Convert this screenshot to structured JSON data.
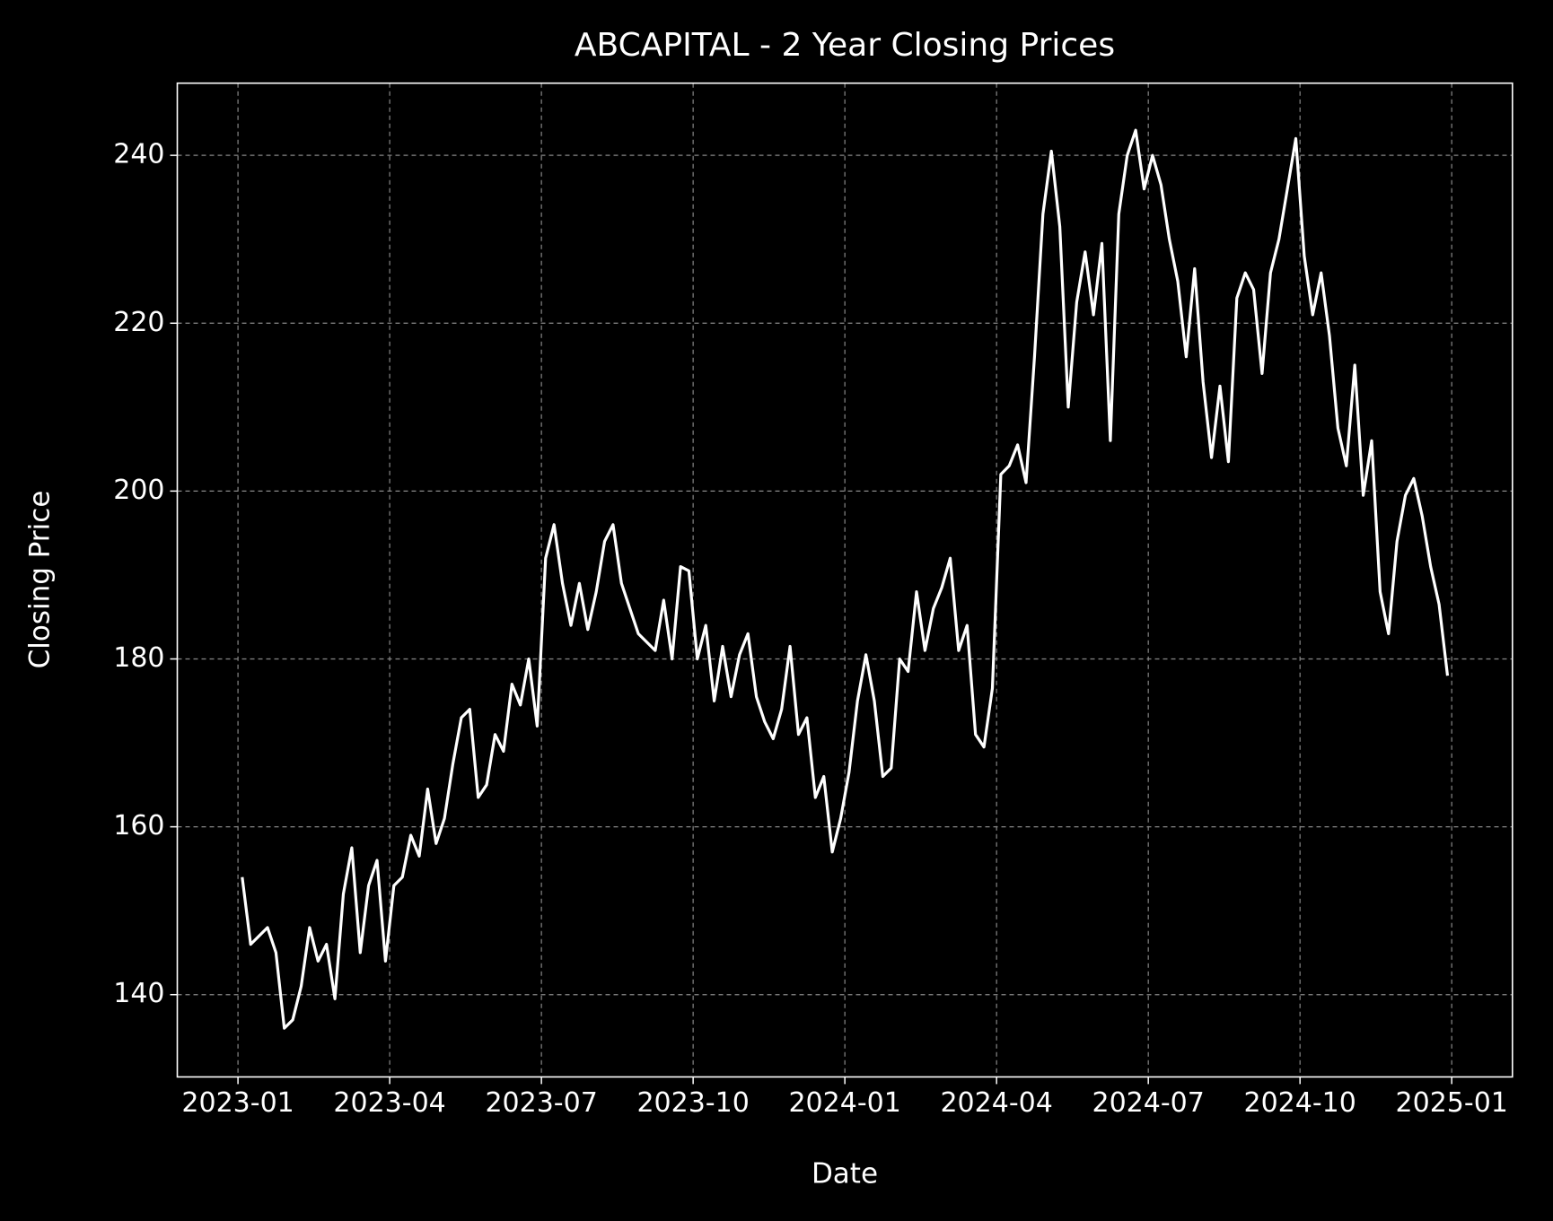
{
  "chart_data": {
    "type": "line",
    "title": "ABCAPITAL - 2 Year Closing Prices",
    "xlabel": "Date",
    "ylabel": "Closing Price",
    "x": [
      "2023-01",
      "2023-01",
      "2023-01",
      "2023-01",
      "2023-01",
      "2023-01",
      "2023-02",
      "2023-02",
      "2023-02",
      "2023-02",
      "2023-02",
      "2023-02",
      "2023-03",
      "2023-03",
      "2023-03",
      "2023-03",
      "2023-03",
      "2023-03",
      "2023-04",
      "2023-04",
      "2023-04",
      "2023-04",
      "2023-04",
      "2023-04",
      "2023-05",
      "2023-05",
      "2023-05",
      "2023-05",
      "2023-05",
      "2023-05",
      "2023-06",
      "2023-06",
      "2023-06",
      "2023-06",
      "2023-06",
      "2023-06",
      "2023-07",
      "2023-07",
      "2023-07",
      "2023-07",
      "2023-07",
      "2023-07",
      "2023-08",
      "2023-08",
      "2023-08",
      "2023-08",
      "2023-08",
      "2023-08",
      "2023-09",
      "2023-09",
      "2023-09",
      "2023-09",
      "2023-09",
      "2023-09",
      "2023-10",
      "2023-10",
      "2023-10",
      "2023-10",
      "2023-10",
      "2023-10",
      "2023-11",
      "2023-11",
      "2023-11",
      "2023-11",
      "2023-11",
      "2023-11",
      "2023-12",
      "2023-12",
      "2023-12",
      "2023-12",
      "2023-12",
      "2023-12",
      "2024-01",
      "2024-01",
      "2024-01",
      "2024-01",
      "2024-01",
      "2024-01",
      "2024-02",
      "2024-02",
      "2024-02",
      "2024-02",
      "2024-02",
      "2024-02",
      "2024-03",
      "2024-03",
      "2024-03",
      "2024-03",
      "2024-03",
      "2024-03",
      "2024-04",
      "2024-04",
      "2024-04",
      "2024-04",
      "2024-04",
      "2024-04",
      "2024-05",
      "2024-05",
      "2024-05",
      "2024-05",
      "2024-05",
      "2024-05",
      "2024-06",
      "2024-06",
      "2024-06",
      "2024-06",
      "2024-06",
      "2024-06",
      "2024-07",
      "2024-07",
      "2024-07",
      "2024-07",
      "2024-07",
      "2024-07",
      "2024-08",
      "2024-08",
      "2024-08",
      "2024-08",
      "2024-08",
      "2024-08",
      "2024-09",
      "2024-09",
      "2024-09",
      "2024-09",
      "2024-09",
      "2024-09",
      "2024-10",
      "2024-10",
      "2024-10",
      "2024-10",
      "2024-10",
      "2024-10",
      "2024-11",
      "2024-11",
      "2024-11",
      "2024-11",
      "2024-11",
      "2024-11",
      "2024-12",
      "2024-12",
      "2024-12",
      "2024-12",
      "2024-12",
      "2024-12"
    ],
    "values": [
      154,
      146,
      147,
      148,
      145,
      136,
      137,
      141,
      148,
      144,
      146,
      139.5,
      152,
      157.5,
      145,
      153,
      156,
      144,
      153,
      154,
      159,
      156.5,
      164.5,
      158,
      161,
      167.5,
      173,
      174,
      163.5,
      165,
      171,
      169,
      177,
      174.5,
      180,
      172,
      192,
      196,
      189,
      184,
      189,
      183.5,
      188,
      194,
      196,
      189,
      186,
      183,
      182,
      181,
      187,
      180,
      191,
      190.5,
      180,
      184,
      175,
      181.5,
      175.5,
      180.5,
      183,
      175.5,
      172.5,
      170.5,
      174,
      181.5,
      171,
      173,
      163.5,
      166,
      157,
      161,
      166.5,
      175,
      180.5,
      175,
      166,
      167,
      180,
      178.5,
      188,
      181,
      186,
      188.5,
      192,
      181,
      184,
      171,
      169.5,
      176.5,
      202,
      203,
      205.5,
      201,
      216,
      233,
      240.5,
      231.5,
      210,
      222.5,
      228.5,
      221,
      229.5,
      206,
      233,
      240,
      243,
      236,
      240,
      236.5,
      230,
      225,
      216,
      226.5,
      213,
      204,
      212.5,
      203.5,
      223,
      226,
      224,
      214,
      226,
      230,
      236,
      242,
      228,
      221,
      226,
      218.5,
      207.5,
      203,
      215,
      199.5,
      206,
      188,
      183,
      194,
      199.5,
      201.5,
      197,
      191,
      186.5,
      178
    ],
    "color": "#ffffff",
    "ylim": [
      130.2,
      248.6
    ],
    "yticks": [
      140,
      160,
      180,
      200,
      220,
      240
    ],
    "xticks": [
      "2023-01",
      "2023-04",
      "2023-07",
      "2023-10",
      "2024-01",
      "2024-04",
      "2024-07",
      "2024-10",
      "2025-01"
    ],
    "grid": true
  }
}
